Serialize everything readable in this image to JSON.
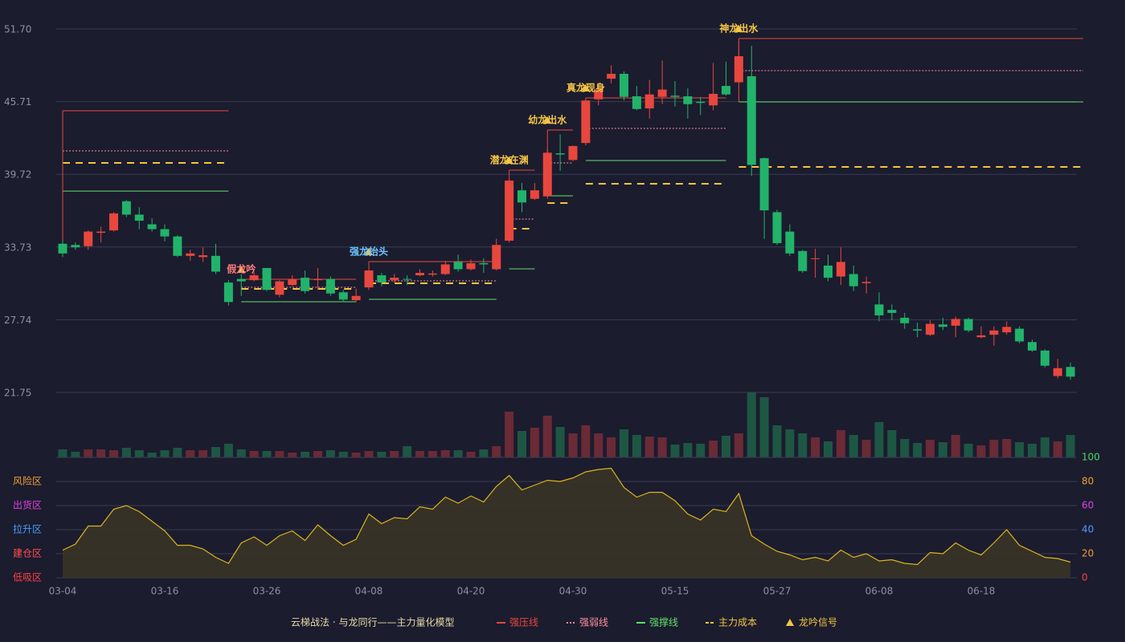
{
  "chart_data": [
    {
      "type": "candlestick",
      "categories": [
        "03-04",
        null,
        null,
        null,
        null,
        null,
        null,
        null,
        "03-16",
        null,
        null,
        null,
        null,
        null,
        null,
        null,
        "03-26",
        null,
        null,
        null,
        null,
        null,
        null,
        null,
        "04-08",
        null,
        null,
        null,
        null,
        null,
        null,
        null,
        "04-20",
        null,
        null,
        null,
        null,
        null,
        null,
        null,
        "04-30",
        null,
        null,
        null,
        null,
        null,
        null,
        null,
        "05-15",
        null,
        null,
        null,
        null,
        null,
        null,
        null,
        "05-27",
        null,
        null,
        null,
        null,
        null,
        null,
        null,
        "06-08",
        null,
        null,
        null,
        null,
        null,
        null,
        null,
        "06-18",
        null,
        null,
        null,
        null,
        null,
        null,
        null
      ],
      "open": [
        34.0,
        33.9,
        33.8,
        34.9,
        35.1,
        37.5,
        36.4,
        35.6,
        35.2,
        34.6,
        33.0,
        32.9,
        33.0,
        30.8,
        31.1,
        31.0,
        32.0,
        29.8,
        30.6,
        31.2,
        31.0,
        31.1,
        30.0,
        29.35,
        30.4,
        31.4,
        31.0,
        31.1,
        31.4,
        31.45,
        31.5,
        32.5,
        31.9,
        32.4,
        31.9,
        34.25,
        38.4,
        37.7,
        37.9,
        41.45,
        40.9,
        42.3,
        45.9,
        47.6,
        48.0,
        46.15,
        45.15,
        46.1,
        46.2,
        46.15,
        45.7,
        45.4,
        47.0,
        47.3,
        47.8,
        41.05,
        36.6,
        35.0,
        33.4,
        32.75,
        32.2,
        31.3,
        31.5,
        30.75,
        29.0,
        28.55,
        27.9,
        26.95,
        26.5,
        27.35,
        27.25,
        27.8,
        26.3,
        26.5,
        26.7,
        27.0,
        25.9,
        25.2,
        23.1,
        23.85
      ],
      "high": [
        34.3,
        34.1,
        35.1,
        35.4,
        36.6,
        37.6,
        37.0,
        36.1,
        35.6,
        34.7,
        33.5,
        33.7,
        34.0,
        31.0,
        31.5,
        31.7,
        32.0,
        31.0,
        31.4,
        31.8,
        32.0,
        31.3,
        30.2,
        30.3,
        32.0,
        31.6,
        31.5,
        31.4,
        31.9,
        31.8,
        32.6,
        33.1,
        32.7,
        32.8,
        34.4,
        39.3,
        39.0,
        39.0,
        41.8,
        43.0,
        42.1,
        45.9,
        47.3,
        48.7,
        48.2,
        47.0,
        47.5,
        49.1,
        47.4,
        46.8,
        46.1,
        48.9,
        49.0,
        50.7,
        50.3,
        41.1,
        36.8,
        35.6,
        33.5,
        33.6,
        33.1,
        33.7,
        32.2,
        31.3,
        30.0,
        29.0,
        28.3,
        27.5,
        27.7,
        27.9,
        28.0,
        27.9,
        27.2,
        27.2,
        27.6,
        27.2,
        26.1,
        25.3,
        24.5,
        24.2
      ],
      "low": [
        32.9,
        33.5,
        33.5,
        34.1,
        35.0,
        36.2,
        35.2,
        35.0,
        34.2,
        32.9,
        32.6,
        32.5,
        31.5,
        28.9,
        29.7,
        30.9,
        30.1,
        29.6,
        30.5,
        29.9,
        30.2,
        29.7,
        29.2,
        29.2,
        30.2,
        30.5,
        30.8,
        30.6,
        31.3,
        31.3,
        31.4,
        31.7,
        31.8,
        31.6,
        31.8,
        34.1,
        36.6,
        37.6,
        37.7,
        40.0,
        40.8,
        42.1,
        45.4,
        47.2,
        45.8,
        45.0,
        44.3,
        45.5,
        45.3,
        44.3,
        44.6,
        45.0,
        46.2,
        45.7,
        39.6,
        34.4,
        33.9,
        33.0,
        31.6,
        31.2,
        30.9,
        30.6,
        30.1,
        29.9,
        27.6,
        27.7,
        27.0,
        26.3,
        26.4,
        26.9,
        26.3,
        26.7,
        26.2,
        25.6,
        26.5,
        25.8,
        25.1,
        23.8,
        22.9,
        22.8
      ],
      "close": [
        33.2,
        33.7,
        35.0,
        35.0,
        36.5,
        36.4,
        35.9,
        35.2,
        34.6,
        33.0,
        33.2,
        33.05,
        31.7,
        29.2,
        30.9,
        31.4,
        30.2,
        30.9,
        31.1,
        30.1,
        31.1,
        29.9,
        29.4,
        29.7,
        31.8,
        30.8,
        31.2,
        31.05,
        31.6,
        31.55,
        32.3,
        31.9,
        32.4,
        32.3,
        33.9,
        39.2,
        37.4,
        38.4,
        41.5,
        41.35,
        42.05,
        45.8,
        46.7,
        48.0,
        46.1,
        45.1,
        46.3,
        46.7,
        46.1,
        45.5,
        45.6,
        46.35,
        46.3,
        49.45,
        40.5,
        36.75,
        34.05,
        33.2,
        31.75,
        32.8,
        31.2,
        32.5,
        30.5,
        30.85,
        28.1,
        28.3,
        27.45,
        26.85,
        27.4,
        27.15,
        27.8,
        26.85,
        26.45,
        26.85,
        27.15,
        25.95,
        25.2,
        23.95,
        23.75,
        23.05
      ],
      "volume": [
        10,
        7,
        10,
        10,
        9,
        12,
        9,
        6,
        9,
        12,
        9,
        9,
        13,
        17,
        10,
        8,
        8,
        8,
        6,
        7,
        8,
        9,
        7,
        6,
        8,
        7,
        8,
        14,
        8,
        8,
        9,
        9,
        7,
        10,
        14,
        57,
        33,
        37,
        52,
        38,
        30,
        40,
        30,
        25,
        35,
        28,
        26,
        25,
        16,
        18,
        17,
        21,
        27,
        30,
        81,
        75,
        40,
        35,
        30,
        25,
        20,
        34,
        28,
        22,
        44,
        34,
        23,
        18,
        22,
        19,
        28,
        17,
        15,
        22,
        23,
        19,
        17,
        25,
        20,
        28
      ],
      "volume_lim": [
        0,
        81
      ],
      "ylim": [
        21.75,
        51.7
      ],
      "yticks": [
        {
          "value": 51.7,
          "label": "51.70"
        },
        45.71,
        39.72,
        33.73,
        27.74,
        21.75
      ],
      "grid": true,
      "up_color": "#e8473d",
      "down_color": "#22b36a",
      "up_volume_color": "#6a2a36",
      "down_volume_color": "#1e5644",
      "signals": [
        {
          "start": 0,
          "end": 13,
          "levels": [
            44.96,
            41.65,
            38.34,
            40.66
          ]
        },
        {
          "label": "假龙吟",
          "color": "#ff7b7b",
          "start": 14,
          "end": 23,
          "levels": [
            31.07,
            30.41,
            29.22,
            30.28
          ]
        },
        {
          "label": "强龙抬头",
          "color": "#6cc4ff",
          "start": 24,
          "end": 34,
          "levels": [
            32.53,
            30.94,
            29.42,
            30.74
          ]
        },
        {
          "label": "潜龙在渊",
          "color": "#f5c542",
          "start": 35,
          "end": 37,
          "levels": [
            40.06,
            36.03,
            31.93,
            35.24
          ]
        },
        {
          "label": "幼龙出水",
          "color": "#f5c542",
          "start": 38,
          "end": 40,
          "levels": [
            43.37,
            40.66,
            37.95,
            37.35
          ]
        },
        {
          "label": "真龙现身",
          "color": "#f5c542",
          "start": 41,
          "end": 52,
          "levels": [
            46.01,
            43.5,
            40.86,
            38.94
          ]
        },
        {
          "label": "神龙出水",
          "color": "#f5c542",
          "start": 53,
          "end": 80,
          "levels": [
            50.91,
            48.26,
            45.68,
            40.33
          ]
        }
      ],
      "legend_title": "云梯战法 · 与龙同行——主力量化模型",
      "legend": [
        {
          "name": "强压线",
          "color": "#e8473d",
          "style": "solid"
        },
        {
          "name": "强弱线",
          "color": "#ff8fa0",
          "style": "dotted"
        },
        {
          "name": "强撑线",
          "color": "#5fe06a",
          "style": "solid"
        },
        {
          "name": "主力成本",
          "color": "#f5c542",
          "style": "dashed"
        },
        {
          "name": "龙吟信号",
          "color": "#f5c542",
          "style": "triangle"
        }
      ]
    },
    {
      "type": "area",
      "values": [
        23,
        28,
        43,
        43,
        57,
        60,
        55,
        47,
        39,
        27,
        27,
        24,
        17,
        12,
        29,
        34,
        27,
        35,
        39,
        31,
        44,
        35,
        27,
        32,
        53,
        45,
        50,
        49,
        59,
        57,
        67,
        62,
        68,
        63,
        76,
        85,
        73,
        77,
        81,
        80,
        83,
        88,
        90,
        91,
        75,
        67,
        71,
        71,
        64,
        53,
        48,
        57,
        55,
        70,
        35,
        28,
        22,
        19,
        15,
        17,
        14,
        23,
        17,
        20,
        14,
        15,
        12,
        11,
        21,
        20,
        29,
        23,
        19,
        29,
        40,
        27,
        22,
        17,
        16,
        13
      ],
      "color": "#d9b51f",
      "fill": "#3a3426",
      "ylim": [
        0,
        100
      ],
      "yticks": [
        100,
        80,
        60,
        40,
        20,
        0
      ],
      "ytick_colors": [
        "#4cd964",
        "#f0a030",
        "#e040e0",
        "#4a9cff",
        "#f0a030",
        "#ff4040"
      ],
      "zones": [
        {
          "label": "风险区",
          "value": 80,
          "color": "#f0a030"
        },
        {
          "label": "出货区",
          "value": 60,
          "color": "#e040e0"
        },
        {
          "label": "拉升区",
          "value": 40,
          "color": "#4a9cff"
        },
        {
          "label": "建仓区",
          "value": 20,
          "color": "#ff5050"
        },
        {
          "label": "低吸区",
          "value": 0,
          "color": "#ff4040"
        }
      ]
    }
  ]
}
